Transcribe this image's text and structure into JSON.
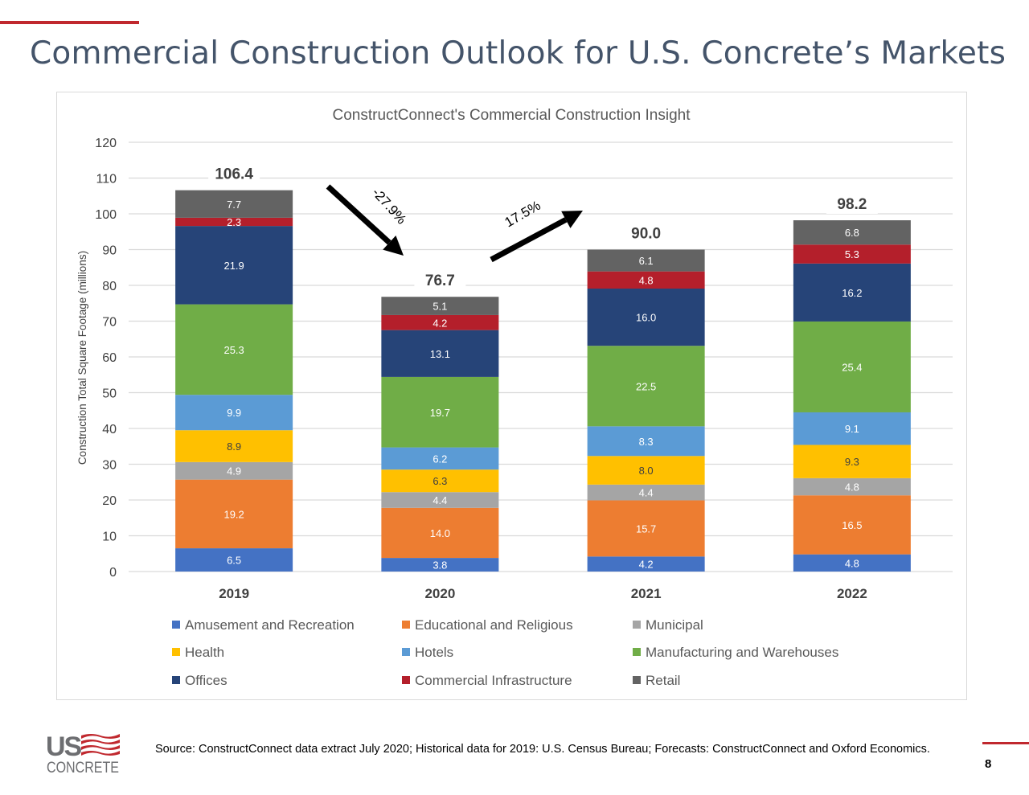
{
  "page": {
    "title": "Commercial Construction Outlook for U.S. Concrete’s Markets",
    "source": "Source:  ConstructConnect data extract July 2020; Historical data for 2019:  U.S. Census Bureau; Forecasts:  ConstructConnect and Oxford Economics.",
    "page_number": "8",
    "logo_text": "US CONCRETE",
    "accent_color": "#C0282E"
  },
  "chart_data": {
    "type": "bar",
    "stacked": true,
    "title": "ConstructConnect's Commercial Construction Insight",
    "xlabel": "",
    "ylabel": "Construction Total Square Footage (millions)",
    "ylim": [
      0,
      120
    ],
    "yticks": [
      0,
      10,
      20,
      30,
      40,
      50,
      60,
      70,
      80,
      90,
      100,
      110,
      120
    ],
    "grid": true,
    "legend_position": "bottom",
    "categories": [
      "2019",
      "2020",
      "2021",
      "2022"
    ],
    "totals": [
      "106.4",
      "76.7",
      "90.0",
      "98.2"
    ],
    "series": [
      {
        "name": "Amusement and Recreation",
        "color": "#4472C4",
        "values": [
          6.5,
          3.8,
          4.2,
          4.8
        ]
      },
      {
        "name": "Educational and Religious",
        "color": "#ED7D31",
        "values": [
          19.2,
          14.0,
          15.7,
          16.5
        ]
      },
      {
        "name": "Municipal",
        "color": "#A5A5A5",
        "values": [
          4.9,
          4.4,
          4.4,
          4.8
        ]
      },
      {
        "name": "Health",
        "color": "#FFC000",
        "values": [
          8.9,
          6.3,
          8.0,
          9.3
        ]
      },
      {
        "name": "Hotels",
        "color": "#5B9BD5",
        "values": [
          9.9,
          6.2,
          8.3,
          9.1
        ]
      },
      {
        "name": "Manufacturing and Warehouses",
        "color": "#70AD47",
        "values": [
          25.3,
          19.7,
          22.5,
          25.4
        ]
      },
      {
        "name": "Offices",
        "color": "#264478",
        "values": [
          21.9,
          13.1,
          16.0,
          16.2
        ]
      },
      {
        "name": "Commercial Infrastructure",
        "color": "#B41F2B",
        "values": [
          2.3,
          4.2,
          4.8,
          5.3
        ]
      },
      {
        "name": "Retail",
        "color": "#636363",
        "values": [
          7.7,
          5.1,
          6.1,
          6.8
        ]
      }
    ],
    "legend_order": [
      "Amusement and Recreation",
      "Educational and Religious",
      "Municipal",
      "Health",
      "Hotels",
      "Manufacturing and Warehouses",
      "Offices",
      "Commercial Infrastructure",
      "Retail"
    ],
    "annotations": [
      {
        "text": "-27.9%",
        "direction": "down",
        "from": "2019",
        "to": "2020"
      },
      {
        "text": "17.5%",
        "direction": "up",
        "from": "2020",
        "to": "2021"
      }
    ]
  }
}
